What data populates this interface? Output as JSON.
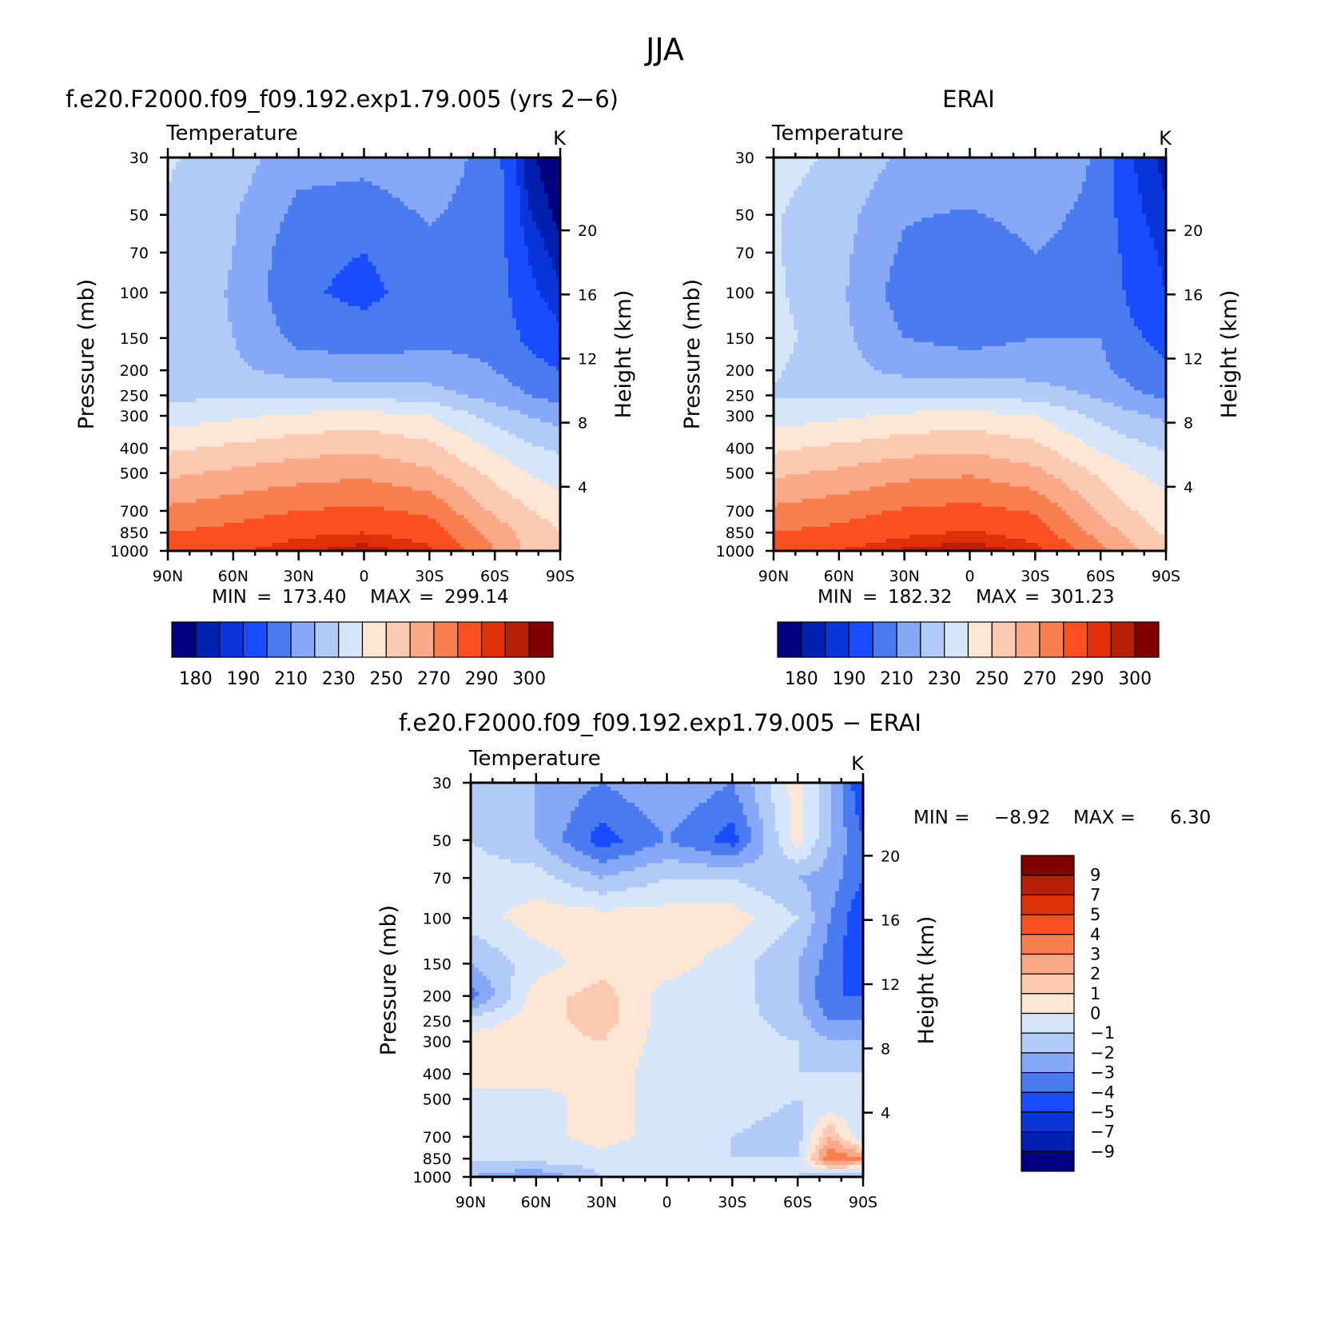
{
  "figure": {
    "title": "JJA"
  },
  "chart_data": [
    {
      "id": "model",
      "type": "heatmap",
      "panel_title": "f.e20.F2000.f09_f09.192.exp1.79.005 (yrs 2−6)",
      "variable": "Temperature",
      "units": "K",
      "ylabel": "Pressure (mb)",
      "ylabel_right": "Height (km)",
      "x_ticks": [
        "90N",
        "60N",
        "30N",
        "0",
        "30S",
        "60S",
        "90S"
      ],
      "x_values": [
        90,
        60,
        30,
        0,
        -30,
        -60,
        -90
      ],
      "y_ticks": [
        30,
        50,
        70,
        100,
        150,
        200,
        250,
        300,
        400,
        500,
        700,
        850,
        1000
      ],
      "y_right_ticks": [
        20,
        16,
        12,
        8,
        4
      ],
      "y_log": true,
      "ylim": [
        1000,
        30
      ],
      "min_label": "MIN",
      "min_value": "173.40",
      "max_label": "MAX",
      "max_value": "299.14",
      "colorbar": {
        "orientation": "horizontal",
        "levels": [
          180,
          185,
          190,
          200,
          210,
          220,
          230,
          240,
          250,
          260,
          270,
          280,
          290,
          295,
          300
        ],
        "labels": [
          "180",
          "190",
          "210",
          "230",
          "250",
          "270",
          "290",
          "300"
        ],
        "colors": [
          "#000080",
          "#0020b0",
          "#0a35d8",
          "#1a4cff",
          "#4a7cf0",
          "#86a8f6",
          "#b2caf8",
          "#d6e6fa",
          "#fde6d4",
          "#fbc8b0",
          "#f9a888",
          "#f88050",
          "#fc5020",
          "#e0300a",
          "#b81e08",
          "#800000"
        ]
      },
      "profile_lat": [
        90,
        60,
        30,
        0,
        -30,
        -60,
        -75,
        -90
      ],
      "profile_p": [
        1000,
        850,
        700,
        500,
        400,
        300,
        250,
        200,
        150,
        100,
        70,
        50,
        30
      ],
      "values": [
        [
          286,
          289,
          294,
          298,
          292,
          270,
          258,
          252
        ],
        [
          280,
          283,
          288,
          290,
          286,
          266,
          256,
          250
        ],
        [
          272,
          276,
          280,
          282,
          278,
          258,
          251,
          246
        ],
        [
          258,
          262,
          266,
          268,
          262,
          247,
          240,
          235
        ],
        [
          248,
          252,
          256,
          258,
          253,
          238,
          232,
          228
        ],
        [
          235,
          238,
          242,
          244,
          240,
          226,
          220,
          216
        ],
        [
          228,
          228,
          228,
          227,
          225,
          216,
          210,
          206
        ],
        [
          226,
          222,
          216,
          214,
          214,
          210,
          204,
          200
        ],
        [
          226,
          220,
          207,
          205,
          208,
          208,
          198,
          192
        ],
        [
          227,
          219,
          202,
          197,
          205,
          206,
          192,
          186
        ],
        [
          228,
          220,
          203,
          200,
          207,
          205,
          190,
          182
        ],
        [
          229,
          221,
          207,
          205,
          211,
          205,
          186,
          178
        ],
        [
          231,
          225,
          214,
          213,
          217,
          205,
          182,
          174
        ]
      ]
    },
    {
      "id": "obs",
      "type": "heatmap",
      "panel_title": "ERAI",
      "variable": "Temperature",
      "units": "K",
      "ylabel": "Pressure (mb)",
      "ylabel_right": "Height (km)",
      "x_ticks": [
        "90N",
        "60N",
        "30N",
        "0",
        "30S",
        "60S",
        "90S"
      ],
      "x_values": [
        90,
        60,
        30,
        0,
        -30,
        -60,
        -90
      ],
      "y_ticks": [
        30,
        50,
        70,
        100,
        150,
        200,
        250,
        300,
        400,
        500,
        700,
        850,
        1000
      ],
      "y_right_ticks": [
        20,
        16,
        12,
        8,
        4
      ],
      "y_log": true,
      "ylim": [
        1000,
        30
      ],
      "min_label": "MIN",
      "min_value": "182.32",
      "max_label": "MAX",
      "max_value": "301.23",
      "colorbar": {
        "orientation": "horizontal",
        "levels": [
          180,
          185,
          190,
          200,
          210,
          220,
          230,
          240,
          250,
          260,
          270,
          280,
          290,
          295,
          300
        ],
        "labels": [
          "180",
          "190",
          "210",
          "230",
          "250",
          "270",
          "290",
          "300"
        ],
        "colors": [
          "#000080",
          "#0020b0",
          "#0a35d8",
          "#1a4cff",
          "#4a7cf0",
          "#86a8f6",
          "#b2caf8",
          "#d6e6fa",
          "#fde6d4",
          "#fbc8b0",
          "#f9a888",
          "#f88050",
          "#fc5020",
          "#e0300a",
          "#b81e08",
          "#800000"
        ]
      },
      "profile_lat": [
        90,
        60,
        30,
        0,
        -30,
        -60,
        -75,
        -90
      ],
      "profile_p": [
        1000,
        850,
        700,
        500,
        400,
        300,
        250,
        200,
        150,
        100,
        70,
        50,
        30
      ],
      "values": [
        [
          287,
          290,
          296,
          299,
          293,
          272,
          262,
          255
        ],
        [
          280,
          283,
          288,
          291,
          286,
          266,
          256,
          248
        ],
        [
          272,
          276,
          281,
          283,
          279,
          258,
          250,
          244
        ],
        [
          258,
          262,
          267,
          269,
          263,
          248,
          241,
          236
        ],
        [
          248,
          252,
          256,
          258,
          253,
          238,
          233,
          229
        ],
        [
          235,
          238,
          242,
          244,
          240,
          227,
          222,
          218
        ],
        [
          229,
          229,
          229,
          228,
          226,
          218,
          212,
          208
        ],
        [
          231,
          224,
          217,
          215,
          216,
          212,
          206,
          202
        ],
        [
          234,
          223,
          210,
          207,
          210,
          210,
          202,
          196
        ],
        [
          232,
          222,
          205,
          200,
          206,
          208,
          197,
          190
        ],
        [
          231,
          223,
          208,
          205,
          210,
          207,
          195,
          188
        ],
        [
          231,
          224,
          211,
          209,
          213,
          207,
          192,
          186
        ],
        [
          234,
          228,
          218,
          217,
          220,
          208,
          190,
          183
        ]
      ]
    },
    {
      "id": "diff",
      "type": "heatmap",
      "panel_title": "f.e20.F2000.f09_f09.192.exp1.79.005 − ERAI",
      "variable": "Temperature",
      "units": "K",
      "ylabel": "Pressure (mb)",
      "ylabel_right": "Height (km)",
      "x_ticks": [
        "90N",
        "60N",
        "30N",
        "0",
        "30S",
        "60S",
        "90S"
      ],
      "x_values": [
        90,
        60,
        30,
        0,
        -30,
        -60,
        -90
      ],
      "y_ticks": [
        30,
        50,
        70,
        100,
        150,
        200,
        250,
        300,
        400,
        500,
        700,
        850,
        1000
      ],
      "y_right_ticks": [
        20,
        16,
        12,
        8,
        4
      ],
      "y_log": true,
      "ylim": [
        1000,
        30
      ],
      "min_label": "MIN =",
      "min_value": "−8.92",
      "max_label": "MAX =",
      "max_value": "6.30",
      "colorbar": {
        "orientation": "vertical",
        "levels": [
          -9,
          -7,
          -5,
          -4,
          -3,
          -2,
          -1,
          0,
          1,
          2,
          3,
          4,
          5,
          7,
          9
        ],
        "labels": [
          "9",
          "7",
          "5",
          "4",
          "3",
          "2",
          "1",
          "0",
          "−1",
          "−2",
          "−3",
          "−4",
          "−5",
          "−7",
          "−9"
        ],
        "colors": [
          "#000080",
          "#0020b0",
          "#0a35d8",
          "#1a4cff",
          "#4a7cf0",
          "#86a8f6",
          "#b2caf8",
          "#d6e6fa",
          "#fde6d4",
          "#fbc8b0",
          "#f9a888",
          "#f88050",
          "#fc5020",
          "#e0300a",
          "#b81e08",
          "#800000"
        ]
      },
      "profile_lat": [
        90,
        60,
        30,
        0,
        -30,
        -60,
        -75,
        -90
      ],
      "profile_p": [
        1000,
        850,
        700,
        500,
        400,
        300,
        250,
        200,
        150,
        100,
        70,
        50,
        30
      ],
      "values": [
        [
          -2,
          -3,
          -1,
          -1,
          -1,
          -1,
          -2,
          -2
        ],
        [
          -1,
          -0.5,
          -0.5,
          -1,
          -1,
          -1,
          4,
          3
        ],
        [
          -0.5,
          -0.5,
          0.5,
          -0.5,
          -1,
          -1.5,
          2,
          -1
        ],
        [
          -0.5,
          -0.5,
          0.5,
          -0.5,
          -0.5,
          -1,
          -1,
          -1
        ],
        [
          0.5,
          0.5,
          0.5,
          -0.5,
          -0.5,
          -1,
          -1,
          -1
        ],
        [
          0.5,
          0.5,
          1,
          -0.5,
          -0.5,
          -1,
          -2,
          -2
        ],
        [
          -0.5,
          0.5,
          1.5,
          -0.5,
          -0.5,
          -1.5,
          -3,
          -3
        ],
        [
          -3.5,
          0.5,
          1.5,
          -0.5,
          -0.5,
          -2,
          -4,
          -4
        ],
        [
          -2,
          -0.5,
          0.5,
          0.5,
          -0.5,
          -2,
          -3.5,
          -5
        ],
        [
          -0.5,
          0.5,
          0.5,
          0.5,
          0.5,
          -1,
          -3,
          -5
        ],
        [
          -0.5,
          -0.5,
          -2,
          -1,
          -1,
          -2,
          -2.5,
          -4
        ],
        [
          -1,
          -2,
          -4.5,
          -3,
          -4.5,
          0.5,
          -2,
          -4
        ],
        [
          -1,
          -2,
          -3,
          -2,
          -3,
          0.5,
          -2,
          -5
        ]
      ]
    }
  ]
}
